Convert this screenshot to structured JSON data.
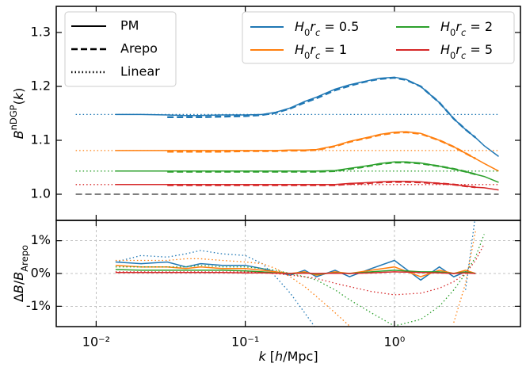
{
  "chart_data": [
    {
      "type": "line",
      "ylabel": "BnDGP(k)",
      "log_x": true,
      "xlim": [
        0.0054,
        7
      ],
      "ylim": [
        0.9515,
        1.3485
      ],
      "xticks": [
        0.01,
        0.1,
        1
      ],
      "yticks": [
        {
          "value": 1.0,
          "label": "1.0"
        },
        1.1,
        1.2,
        1.3
      ],
      "line_styles": [
        {
          "name": "PM",
          "dash": "solid"
        },
        {
          "name": "Arepo",
          "dash": "dashed"
        },
        {
          "name": "Linear",
          "dash": "dotted"
        }
      ],
      "reference_line": {
        "x": [
          0.0073,
          5
        ],
        "values": [
          1.0,
          1.0
        ]
      },
      "x": [
        0.0135,
        0.02,
        0.03,
        0.04,
        0.05,
        0.07,
        0.1,
        0.13,
        0.16,
        0.2,
        0.25,
        0.3,
        0.4,
        0.5,
        0.6,
        0.7,
        0.8,
        1.0,
        1.2,
        1.5,
        2.0,
        2.5,
        3.0,
        3.5,
        4.0,
        5.0
      ],
      "linear_x": [
        0.0073,
        5
      ],
      "series": [
        {
          "name": "H0rc = 0.5",
          "color": "#1f77b4",
          "pm": [
            1.148,
            1.148,
            1.147,
            1.146,
            1.146,
            1.147,
            1.147,
            1.148,
            1.152,
            1.16,
            1.172,
            1.18,
            1.195,
            1.203,
            1.208,
            1.212,
            1.215,
            1.217,
            1.213,
            1.2,
            1.17,
            1.14,
            1.12,
            1.105,
            1.09,
            1.07
          ],
          "arepo": [
            null,
            null,
            1.143,
            1.143,
            1.143,
            1.144,
            1.145,
            1.147,
            1.151,
            1.159,
            1.17,
            1.178,
            1.193,
            1.201,
            1.207,
            1.211,
            1.214,
            1.216,
            1.212,
            1.2,
            1.17,
            1.14,
            1.12,
            1.105,
            null,
            null
          ],
          "linear": [
            1.148,
            1.148
          ]
        },
        {
          "name": "H0rc = 1",
          "color": "#ff7f0e",
          "pm": [
            1.081,
            1.081,
            1.081,
            1.081,
            1.081,
            1.081,
            1.081,
            1.081,
            1.081,
            1.082,
            1.082,
            1.083,
            1.09,
            1.098,
            1.103,
            1.107,
            1.111,
            1.115,
            1.116,
            1.113,
            1.1,
            1.088,
            1.076,
            1.066,
            1.057,
            1.043
          ],
          "arepo": [
            null,
            null,
            1.079,
            1.079,
            1.079,
            1.079,
            1.08,
            1.08,
            1.08,
            1.081,
            1.081,
            1.082,
            1.089,
            1.097,
            1.102,
            1.106,
            1.11,
            1.114,
            1.115,
            1.112,
            1.1,
            1.088,
            1.076,
            1.066,
            null,
            null
          ],
          "linear": [
            1.081,
            1.081
          ]
        },
        {
          "name": "H0rc = 2",
          "color": "#2ca02c",
          "pm": [
            1.043,
            1.043,
            1.043,
            1.043,
            1.043,
            1.043,
            1.043,
            1.043,
            1.043,
            1.043,
            1.043,
            1.043,
            1.044,
            1.048,
            1.051,
            1.054,
            1.057,
            1.06,
            1.06,
            1.058,
            1.052,
            1.047,
            1.042,
            1.037,
            1.033,
            1.022
          ],
          "arepo": [
            null,
            null,
            1.042,
            1.042,
            1.042,
            1.042,
            1.042,
            1.042,
            1.042,
            1.042,
            1.042,
            1.042,
            1.043,
            1.047,
            1.05,
            1.053,
            1.056,
            1.059,
            1.059,
            1.057,
            1.052,
            1.047,
            1.042,
            1.037,
            null,
            null
          ],
          "linear": [
            1.043,
            1.043
          ]
        },
        {
          "name": "H0rc = 5",
          "color": "#d62728",
          "pm": [
            1.018,
            1.018,
            1.018,
            1.018,
            1.018,
            1.018,
            1.018,
            1.018,
            1.018,
            1.018,
            1.018,
            1.018,
            1.018,
            1.02,
            1.021,
            1.022,
            1.023,
            1.024,
            1.024,
            1.023,
            1.02,
            1.018,
            1.015,
            1.013,
            1.012,
            1.008
          ],
          "arepo": [
            null,
            null,
            1.017,
            1.017,
            1.017,
            1.017,
            1.017,
            1.017,
            1.017,
            1.017,
            1.017,
            1.017,
            1.017,
            1.019,
            1.02,
            1.021,
            1.022,
            1.023,
            1.023,
            1.022,
            1.02,
            1.018,
            1.015,
            1.013,
            null,
            null
          ],
          "linear": [
            1.018,
            1.018
          ]
        }
      ]
    },
    {
      "type": "line",
      "xlabel": "k [h/Mpc]",
      "ylabel": "ΔB/BArepo",
      "log_x": true,
      "grid": true,
      "xlim": [
        0.0054,
        7
      ],
      "ylim": [
        -1.62,
        1.62
      ],
      "xticks": [
        {
          "value": 0.01,
          "label": "10⁻²"
        },
        {
          "value": 0.1,
          "label": "10⁻¹"
        },
        {
          "value": 1,
          "label": "10⁰"
        }
      ],
      "yticks": [
        {
          "value": 1,
          "label": "1%"
        },
        {
          "value": 0,
          "label": "0%"
        },
        {
          "value": -1,
          "label": "-1%"
        }
      ],
      "x": [
        0.0135,
        0.02,
        0.03,
        0.04,
        0.05,
        0.07,
        0.1,
        0.13,
        0.16,
        0.2,
        0.25,
        0.3,
        0.4,
        0.5,
        0.7,
        1.0,
        1.5,
        2.0,
        2.5,
        3.0,
        3.5,
        4.0,
        5.0
      ],
      "series": [
        {
          "color": "#1f77b4",
          "pm": [
            0.35,
            0.3,
            0.35,
            0.2,
            0.3,
            0.25,
            0.25,
            0.15,
            0.05,
            -0.05,
            0.1,
            -0.1,
            0.1,
            -0.1,
            0.15,
            0.4,
            -0.2,
            0.2,
            -0.1,
            0.05,
            0.0,
            null,
            null
          ],
          "linear": [
            0.35,
            0.55,
            0.5,
            0.6,
            0.7,
            0.6,
            0.55,
            0.3,
            -0.1,
            -0.6,
            -1.2,
            -1.7,
            null,
            null,
            null,
            null,
            null,
            null,
            null,
            -0.5,
            1.8,
            null,
            null
          ]
        },
        {
          "color": "#ff7f0e",
          "pm": [
            0.25,
            0.2,
            0.2,
            0.15,
            0.2,
            0.15,
            0.15,
            0.1,
            0.05,
            0,
            0.05,
            -0.05,
            0.05,
            0,
            0.1,
            0.2,
            -0.1,
            0.1,
            0,
            0.1,
            0.0,
            null,
            null
          ],
          "linear": [
            0.4,
            0.4,
            0.4,
            0.45,
            0.45,
            0.4,
            0.35,
            0.3,
            0.15,
            -0.1,
            -0.4,
            -0.7,
            -1.2,
            -1.6,
            null,
            null,
            null,
            null,
            -1.5,
            -0.3,
            1.3,
            null,
            null
          ]
        },
        {
          "color": "#2ca02c",
          "pm": [
            0.12,
            0.1,
            0.1,
            0.1,
            0.1,
            0.1,
            0.08,
            0.05,
            0.02,
            0,
            0.02,
            -0.02,
            0.02,
            0,
            0.05,
            0.1,
            0.05,
            0.05,
            0,
            0.05,
            0.0,
            null,
            null
          ],
          "linear": [
            0.2,
            0.2,
            0.2,
            0.2,
            0.25,
            0.2,
            0.2,
            0.15,
            0.1,
            0,
            -0.1,
            -0.2,
            -0.5,
            -0.8,
            -1.2,
            -1.6,
            -1.4,
            -1.0,
            -0.5,
            0.0,
            0.5,
            1.2,
            null
          ]
        },
        {
          "color": "#d62728",
          "pm": [
            0.03,
            0.03,
            0.03,
            0.03,
            0.03,
            0.03,
            0.02,
            0.02,
            0.01,
            0,
            0.01,
            0,
            0.01,
            0,
            0.02,
            0.05,
            0.03,
            0.02,
            0,
            0.02,
            0.0,
            null,
            null
          ],
          "linear": [
            0.05,
            0.05,
            0.05,
            0.05,
            0.05,
            0.05,
            0.05,
            0.03,
            0,
            -0.05,
            -0.1,
            -0.15,
            -0.3,
            -0.4,
            -0.55,
            -0.65,
            -0.6,
            -0.45,
            -0.25,
            0,
            0.4,
            0.9,
            null
          ]
        }
      ]
    }
  ]
}
